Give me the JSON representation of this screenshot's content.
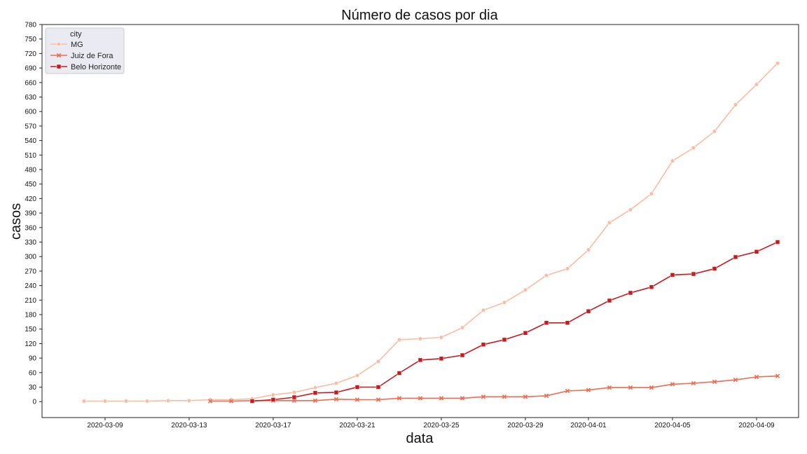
{
  "chart_data": {
    "type": "line",
    "title": "Número de casos por dia",
    "xlabel": "data",
    "ylabel": "casos",
    "x_range": [
      "2020-03-06",
      "2020-04-11"
    ],
    "ylim": [
      -33,
      780
    ],
    "y_ticks": [
      0,
      30,
      60,
      90,
      120,
      150,
      180,
      210,
      240,
      270,
      300,
      330,
      360,
      390,
      420,
      450,
      480,
      510,
      540,
      570,
      600,
      630,
      660,
      690,
      720,
      750,
      780
    ],
    "x_ticks": [
      "2020-03-09",
      "2020-03-13",
      "2020-03-17",
      "2020-03-21",
      "2020-03-25",
      "2020-03-29",
      "2020-04-01",
      "2020-04-05",
      "2020-04-09"
    ],
    "grid": false,
    "legend": {
      "title": "city",
      "position": "top-left",
      "background": "#eaeaf2"
    },
    "series": [
      {
        "name": "MG",
        "color": "#fcbba1",
        "marker": "circle",
        "points": [
          [
            "2020-03-08",
            1
          ],
          [
            "2020-03-09",
            1
          ],
          [
            "2020-03-10",
            1
          ],
          [
            "2020-03-11",
            1
          ],
          [
            "2020-03-12",
            2
          ],
          [
            "2020-03-13",
            2
          ],
          [
            "2020-03-14",
            4
          ],
          [
            "2020-03-15",
            4
          ],
          [
            "2020-03-16",
            6
          ],
          [
            "2020-03-17",
            14
          ],
          [
            "2020-03-18",
            19
          ],
          [
            "2020-03-19",
            29
          ],
          [
            "2020-03-20",
            38
          ],
          [
            "2020-03-21",
            54
          ],
          [
            "2020-03-22",
            83
          ],
          [
            "2020-03-23",
            128
          ],
          [
            "2020-03-24",
            130
          ],
          [
            "2020-03-25",
            133
          ],
          [
            "2020-03-26",
            153
          ],
          [
            "2020-03-27",
            189
          ],
          [
            "2020-03-28",
            205
          ],
          [
            "2020-03-29",
            231
          ],
          [
            "2020-03-30",
            261
          ],
          [
            "2020-03-31",
            275
          ],
          [
            "2020-04-01",
            314
          ],
          [
            "2020-04-02",
            370
          ],
          [
            "2020-04-03",
            397
          ],
          [
            "2020-04-04",
            430
          ],
          [
            "2020-04-05",
            498
          ],
          [
            "2020-04-06",
            525
          ],
          [
            "2020-04-07",
            559
          ],
          [
            "2020-04-08",
            614
          ],
          [
            "2020-04-09",
            656
          ],
          [
            "2020-04-10",
            700
          ]
        ]
      },
      {
        "name": "Juiz de Fora",
        "color": "#f26a4f",
        "marker": "x",
        "points": [
          [
            "2020-03-14",
            1
          ],
          [
            "2020-03-15",
            1
          ],
          [
            "2020-03-16",
            2
          ],
          [
            "2020-03-17",
            2
          ],
          [
            "2020-03-18",
            2
          ],
          [
            "2020-03-19",
            2
          ],
          [
            "2020-03-20",
            5
          ],
          [
            "2020-03-21",
            4
          ],
          [
            "2020-03-22",
            4
          ],
          [
            "2020-03-23",
            7
          ],
          [
            "2020-03-24",
            7
          ],
          [
            "2020-03-25",
            7
          ],
          [
            "2020-03-26",
            7
          ],
          [
            "2020-03-27",
            10
          ],
          [
            "2020-03-28",
            10
          ],
          [
            "2020-03-29",
            10
          ],
          [
            "2020-03-30",
            12
          ],
          [
            "2020-03-31",
            22
          ],
          [
            "2020-04-01",
            24
          ],
          [
            "2020-04-02",
            29
          ],
          [
            "2020-04-03",
            29
          ],
          [
            "2020-04-04",
            29
          ],
          [
            "2020-04-05",
            36
          ],
          [
            "2020-04-06",
            38
          ],
          [
            "2020-04-07",
            41
          ],
          [
            "2020-04-08",
            45
          ],
          [
            "2020-04-09",
            51
          ],
          [
            "2020-04-10",
            53
          ]
        ]
      },
      {
        "name": "Belo Horizonte",
        "color": "#cb181d",
        "marker": "square",
        "points": [
          [
            "2020-03-16",
            1
          ],
          [
            "2020-03-17",
            4
          ],
          [
            "2020-03-18",
            9
          ],
          [
            "2020-03-19",
            18
          ],
          [
            "2020-03-20",
            19
          ],
          [
            "2020-03-21",
            30
          ],
          [
            "2020-03-22",
            30
          ],
          [
            "2020-03-23",
            59
          ],
          [
            "2020-03-24",
            86
          ],
          [
            "2020-03-25",
            89
          ],
          [
            "2020-03-26",
            96
          ],
          [
            "2020-03-27",
            118
          ],
          [
            "2020-03-28",
            128
          ],
          [
            "2020-03-29",
            142
          ],
          [
            "2020-03-30",
            163
          ],
          [
            "2020-03-31",
            163
          ],
          [
            "2020-04-01",
            187
          ],
          [
            "2020-04-02",
            209
          ],
          [
            "2020-04-03",
            225
          ],
          [
            "2020-04-04",
            237
          ],
          [
            "2020-04-05",
            262
          ],
          [
            "2020-04-06",
            264
          ],
          [
            "2020-04-07",
            275
          ],
          [
            "2020-04-08",
            299
          ],
          [
            "2020-04-09",
            310
          ],
          [
            "2020-04-10",
            330
          ]
        ]
      }
    ]
  }
}
